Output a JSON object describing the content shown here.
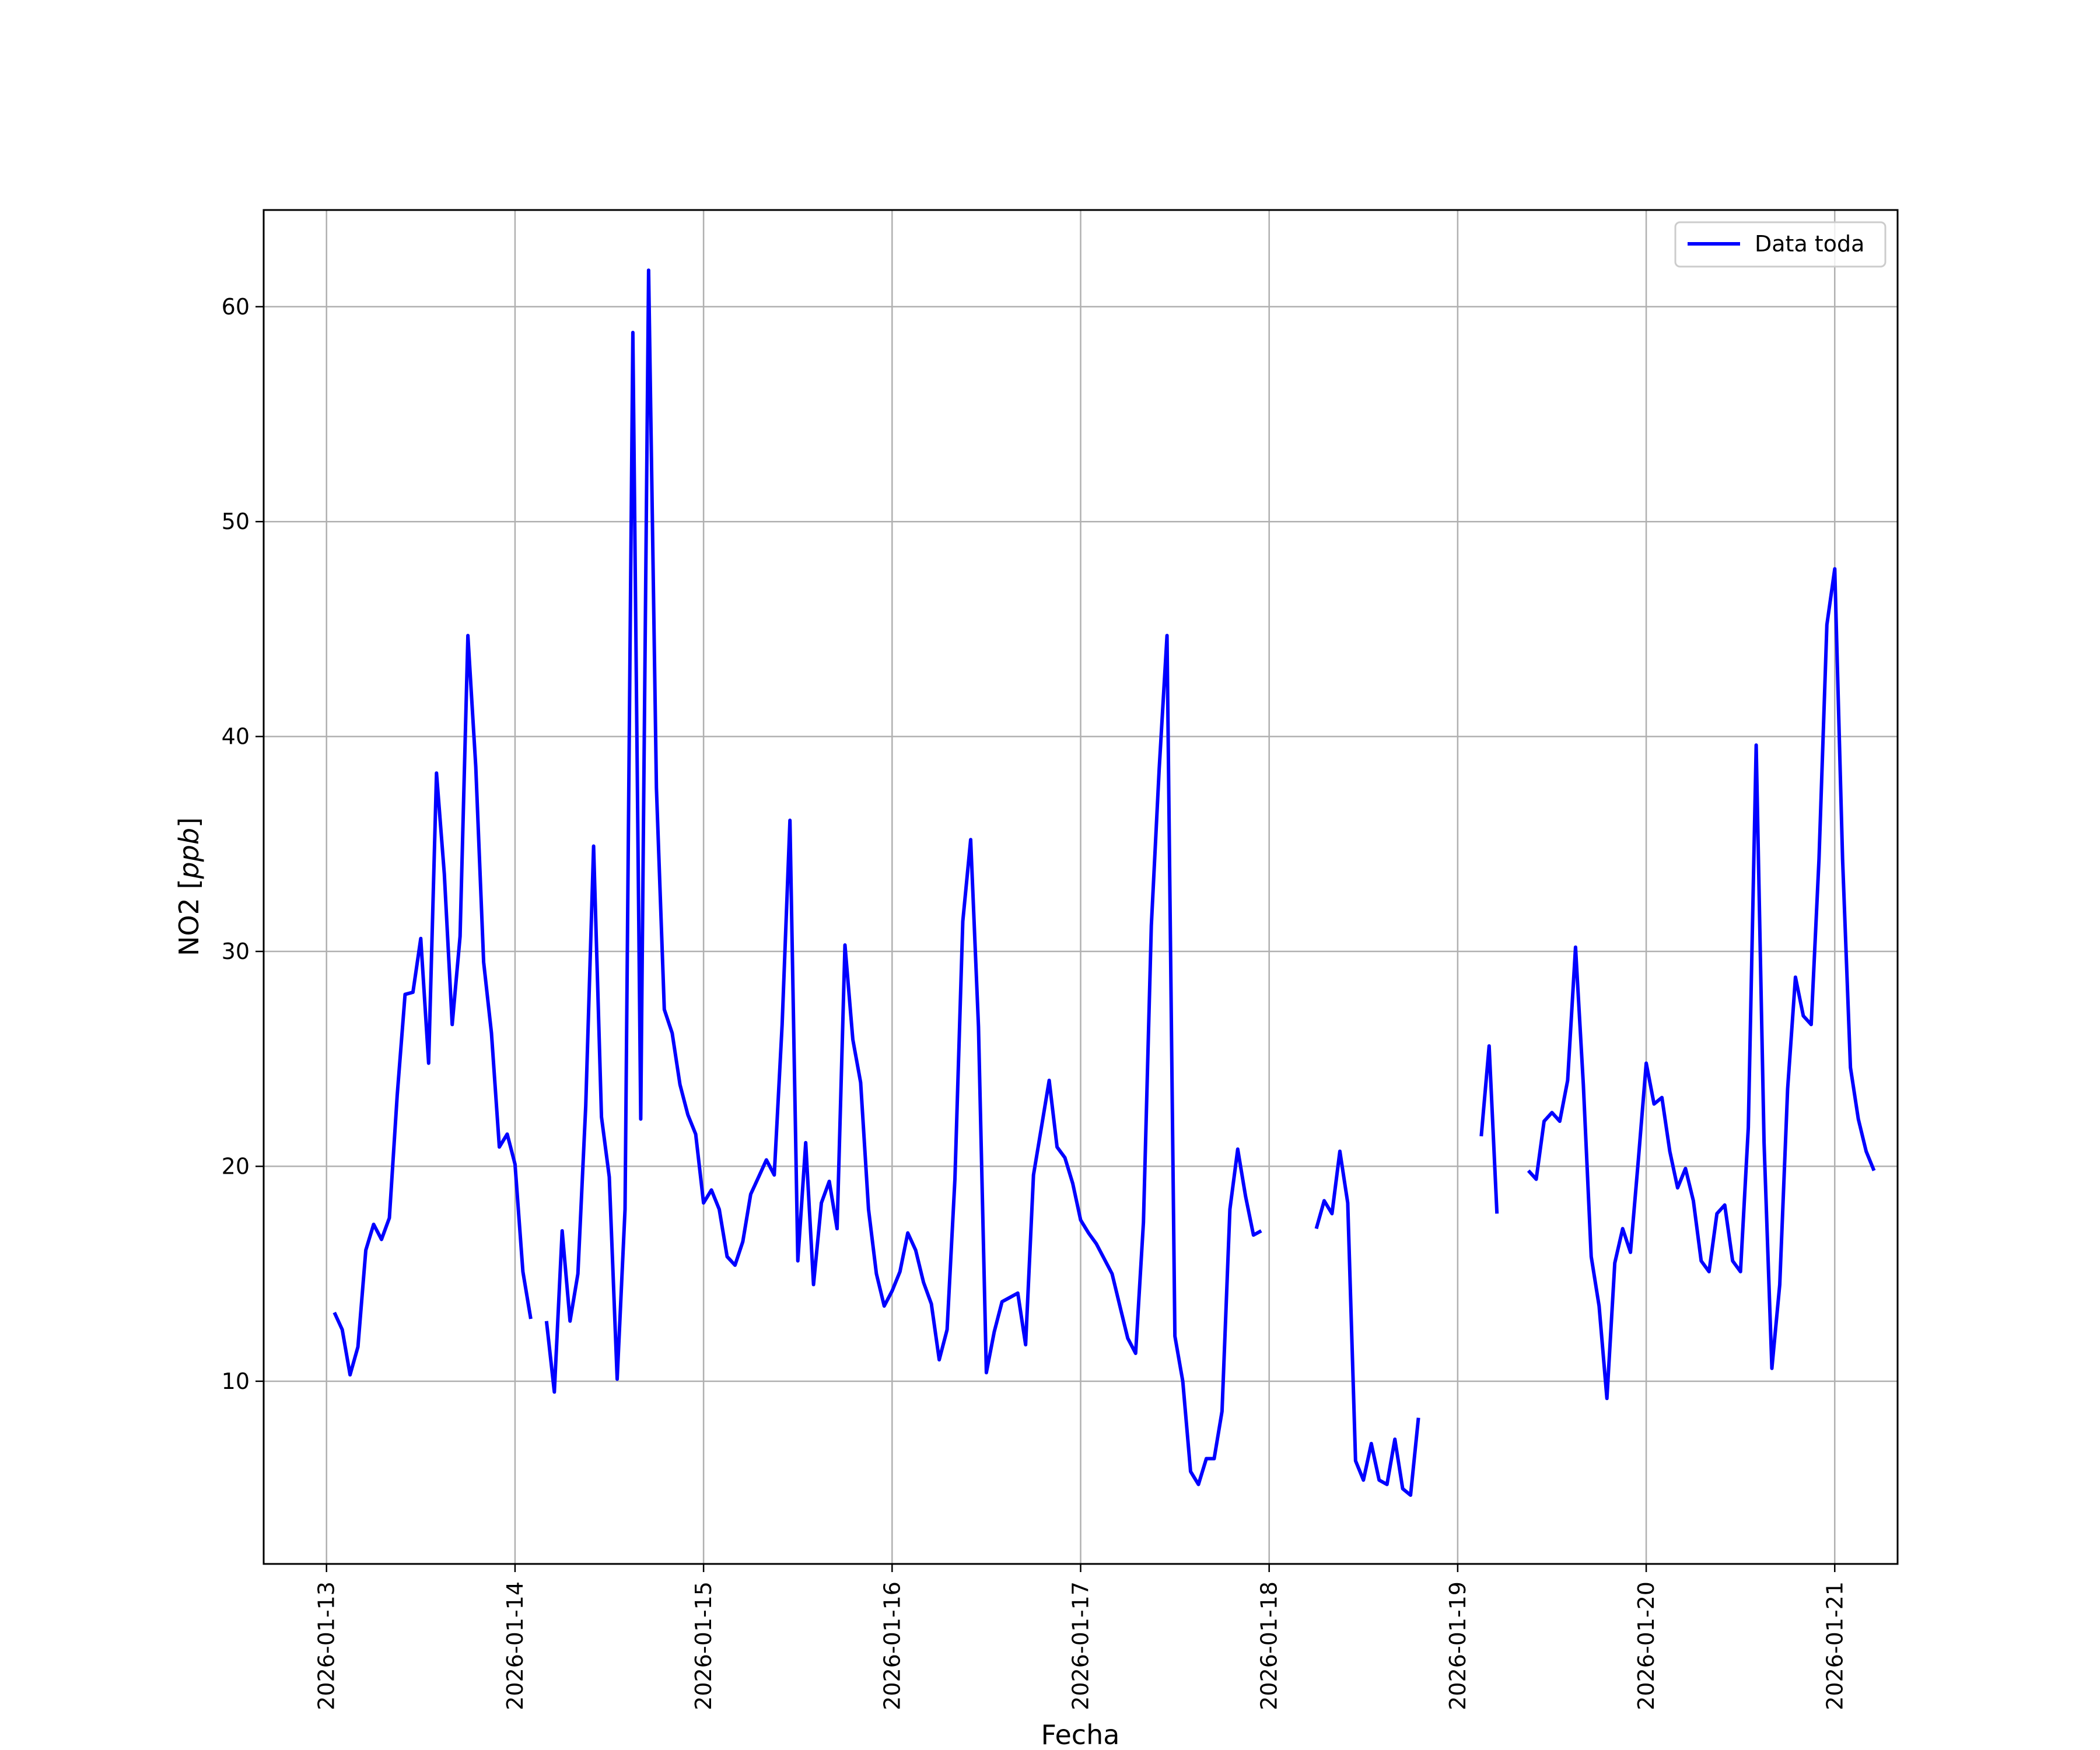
{
  "chart_data": {
    "type": "line",
    "xlabel": "Fecha",
    "ylabel": "NO2 [ppb]",
    "xlim": [
      "2026-01-12T16:00",
      "2026-01-21T08:00"
    ],
    "ylim": [
      1.5,
      64.5
    ],
    "x_ticks": [
      "2026-01-13",
      "2026-01-14",
      "2026-01-15",
      "2026-01-16",
      "2026-01-17",
      "2026-01-18",
      "2026-01-19",
      "2026-01-20",
      "2026-01-21"
    ],
    "y_ticks": [
      10,
      20,
      30,
      40,
      50,
      60
    ],
    "grid": true,
    "legend_position": "top-right",
    "line_color": "#0000ff",
    "series": [
      {
        "name": "Data toda",
        "x_start": "2026-01-13T01:00",
        "step_hours": 1,
        "values": [
          13.2,
          12.4,
          10.3,
          11.6,
          16.1,
          17.3,
          16.6,
          17.6,
          23.3,
          28.0,
          28.1,
          30.6,
          24.8,
          38.3,
          33.6,
          26.6,
          30.7,
          44.7,
          38.6,
          29.5,
          26.2,
          20.9,
          21.5,
          20.1,
          15.1,
          12.9,
          null,
          12.8,
          9.5,
          17.0,
          12.8,
          15.0,
          22.8,
          34.9,
          22.3,
          19.5,
          10.1,
          18.0,
          58.8,
          22.2,
          61.7,
          37.6,
          27.3,
          26.2,
          23.8,
          22.4,
          21.5,
          18.3,
          18.9,
          18.0,
          15.8,
          15.4,
          16.5,
          18.7,
          19.5,
          20.3,
          19.6,
          26.6,
          36.1,
          15.6,
          21.1,
          14.5,
          18.3,
          19.3,
          17.1,
          30.3,
          25.9,
          23.9,
          18.0,
          15.0,
          13.5,
          14.2,
          15.1,
          16.9,
          16.1,
          14.6,
          13.6,
          11.0,
          12.4,
          19.4,
          31.4,
          35.2,
          26.5,
          10.4,
          12.3,
          13.7,
          13.9,
          14.1,
          11.7,
          19.6,
          21.8,
          24.0,
          20.9,
          20.4,
          19.2,
          17.5,
          16.9,
          16.4,
          15.7,
          15.0,
          13.5,
          12.0,
          11.3,
          17.4,
          31.2,
          38.5,
          44.7,
          12.1,
          10.0,
          5.8,
          5.2,
          6.4,
          6.4,
          8.6,
          18.0,
          20.8,
          18.6,
          16.8,
          17.0,
          null,
          null,
          null,
          null,
          null,
          null,
          17.1,
          18.4,
          17.8,
          20.7,
          18.3,
          6.3,
          5.4,
          7.1,
          5.4,
          5.2,
          7.3,
          5.0,
          4.7,
          8.3,
          null,
          null,
          null,
          null,
          null,
          null,
          null,
          21.4,
          25.6,
          17.8,
          null,
          null,
          null,
          19.8,
          19.4,
          22.1,
          22.5,
          22.1,
          24.0,
          30.2,
          23.8,
          15.8,
          13.5,
          9.2,
          15.5,
          17.1,
          16.0,
          20.3,
          24.8,
          22.9,
          23.2,
          20.7,
          19.0,
          19.9,
          18.4,
          15.6,
          15.1,
          17.8,
          18.2,
          15.6,
          15.1,
          21.8,
          39.6,
          21.1,
          10.6,
          14.5,
          23.6,
          28.8,
          27.0,
          26.6,
          34.3,
          45.2,
          47.8,
          34.3,
          24.6,
          22.2,
          20.7,
          19.8
        ]
      }
    ]
  }
}
